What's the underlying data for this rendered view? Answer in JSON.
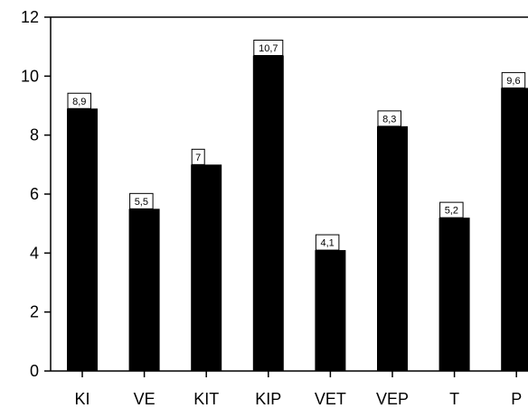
{
  "chart_data": {
    "type": "bar",
    "categories": [
      "KI",
      "VE",
      "KIT",
      "KIP",
      "VET",
      "VEP",
      "T",
      "P"
    ],
    "values": [
      8.9,
      5.5,
      7,
      10.7,
      4.1,
      8.3,
      5.2,
      9.6
    ],
    "data_labels": [
      "8,9",
      "5,5",
      "7",
      "10,7",
      "4,1",
      "8,3",
      "5,2",
      "9,6"
    ],
    "y_ticks": [
      "0",
      "2",
      "4",
      "6",
      "8",
      "10",
      "12"
    ],
    "ylim": [
      0,
      12
    ],
    "title": "",
    "xlabel": "",
    "ylabel": "",
    "grid": false,
    "bar_color": "#000000",
    "label_box_color": "#ffffff"
  }
}
